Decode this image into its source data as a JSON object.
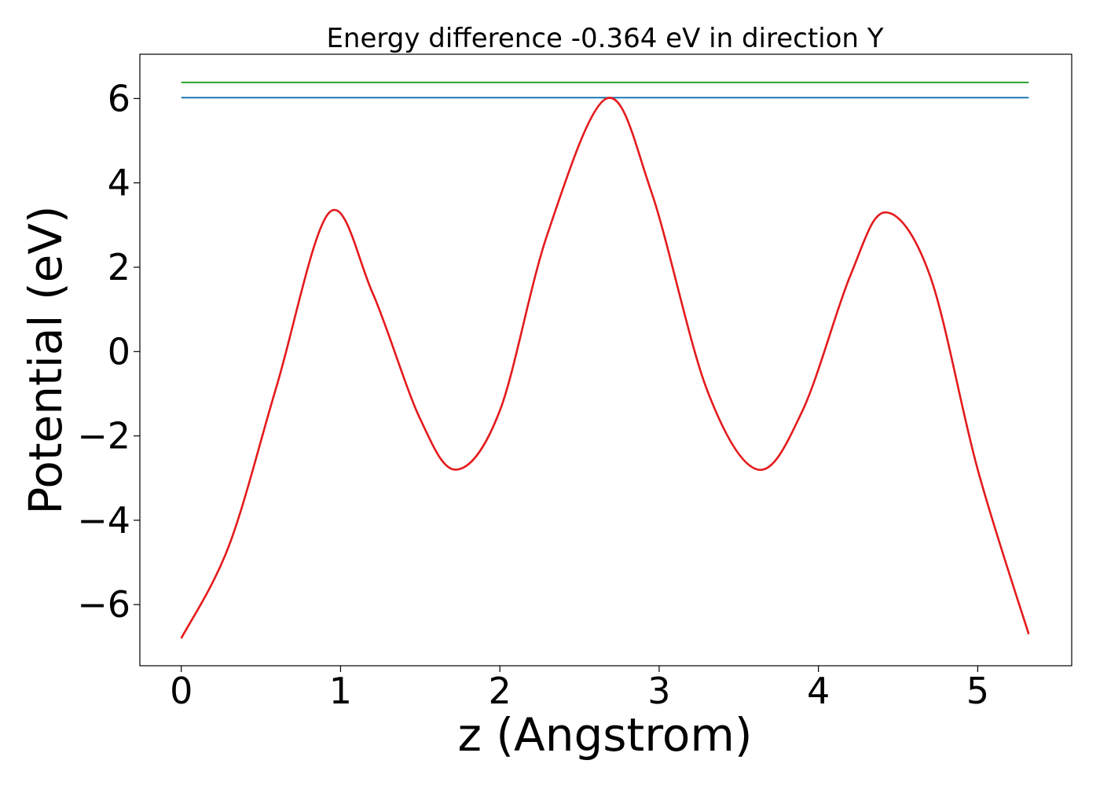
{
  "chart_data": {
    "type": "line",
    "title": "Energy difference -0.364 eV in direction Y",
    "xlabel": "z (Angstrom)",
    "ylabel": "Potential (eV)",
    "xlim": [
      -0.26,
      5.59
    ],
    "ylim": [
      -7.45,
      7.05
    ],
    "x_ticks": [
      0,
      1,
      2,
      3,
      4,
      5
    ],
    "x_tick_labels": [
      "0",
      "1",
      "2",
      "3",
      "4",
      "5"
    ],
    "y_ticks": [
      -6,
      -4,
      -2,
      0,
      2,
      4,
      6
    ],
    "y_tick_labels": [
      "−6",
      "−4",
      "−2",
      "0",
      "2",
      "4",
      "6"
    ],
    "grid": false,
    "legend": "none",
    "series": [
      {
        "color": "#2ca02c",
        "style": "horizontal",
        "x": [
          0,
          5.32
        ],
        "y": [
          6.38,
          6.38
        ]
      },
      {
        "color": "#1f77b4",
        "style": "horizontal",
        "x": [
          0,
          5.32
        ],
        "y": [
          6.02,
          6.02
        ]
      },
      {
        "color": "#e41a1c",
        "style": "curve",
        "x": [
          0,
          0.3,
          0.6,
          0.93,
          1.2,
          1.5,
          1.73,
          2.0,
          2.3,
          2.67,
          2.95,
          3.3,
          3.62,
          3.9,
          4.2,
          4.42,
          4.7,
          5.0,
          5.32
        ],
        "y": [
          -6.8,
          -4.6,
          -0.8,
          3.3,
          1.4,
          -1.6,
          -2.8,
          -1.4,
          2.8,
          6.0,
          3.8,
          -0.9,
          -2.8,
          -1.4,
          1.8,
          3.3,
          1.8,
          -2.8,
          -6.7
        ]
      }
    ]
  }
}
